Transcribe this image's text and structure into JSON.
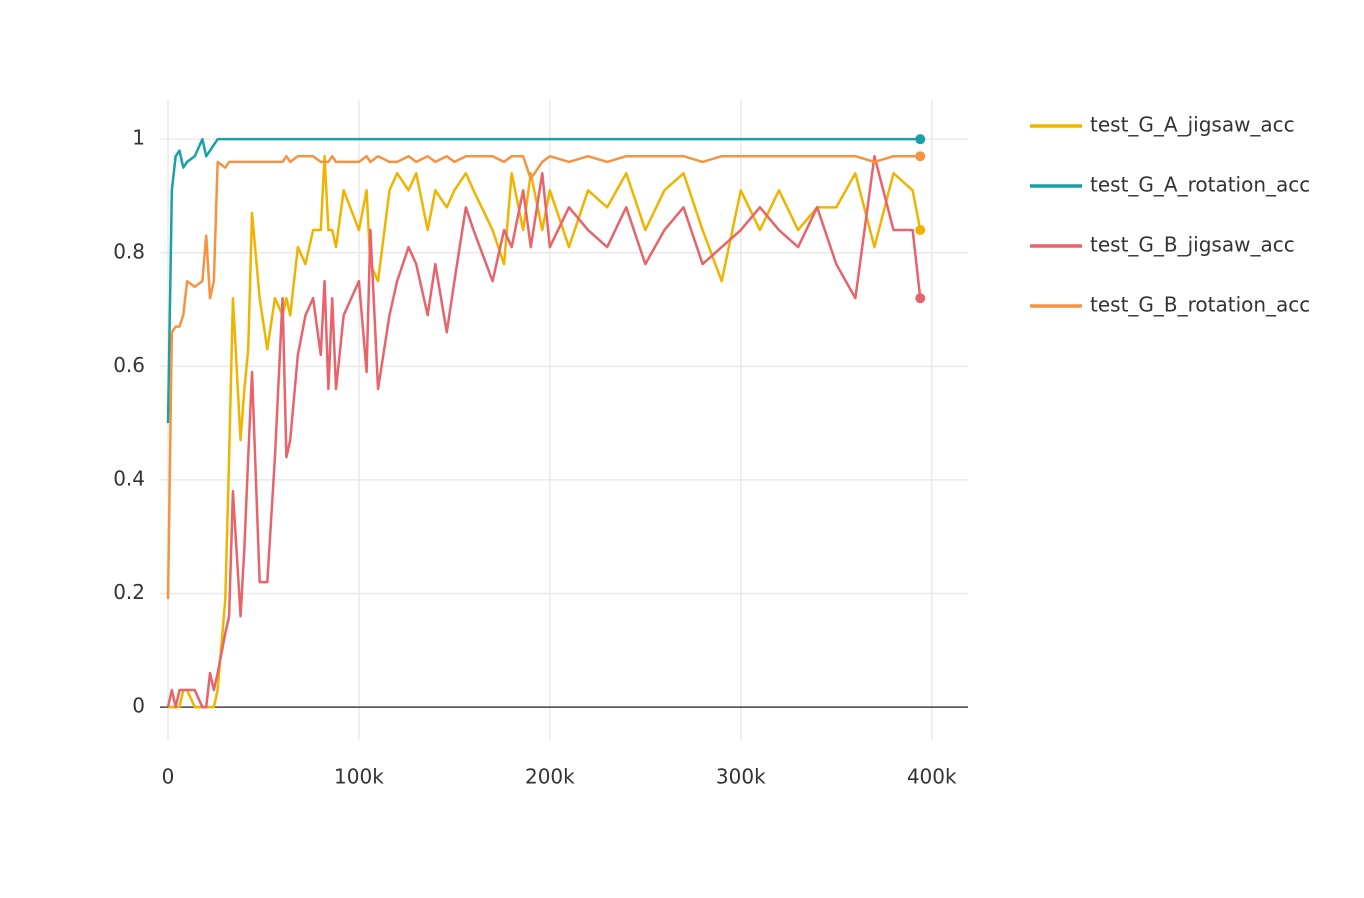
{
  "chart_data": {
    "type": "line",
    "x": [
      0,
      2000,
      4000,
      6000,
      8000,
      10000,
      14000,
      18000,
      20000,
      22000,
      24000,
      26000,
      30000,
      32000,
      34000,
      38000,
      40000,
      42000,
      44000,
      48000,
      52000,
      56000,
      60000,
      62000,
      64000,
      68000,
      72000,
      76000,
      80000,
      82000,
      84000,
      86000,
      88000,
      92000,
      100000,
      104000,
      106000,
      110000,
      116000,
      120000,
      126000,
      130000,
      136000,
      140000,
      146000,
      150000,
      156000,
      160000,
      170000,
      176000,
      180000,
      186000,
      190000,
      196000,
      200000,
      210000,
      220000,
      230000,
      240000,
      250000,
      260000,
      270000,
      280000,
      290000,
      300000,
      310000,
      320000,
      330000,
      340000,
      350000,
      360000,
      370000,
      380000,
      390000,
      394000
    ],
    "series": [
      {
        "name": "test_G_A_jigsaw_acc",
        "color": "#f0b400",
        "values": [
          0,
          0,
          0,
          0,
          0.03,
          0.03,
          0,
          0,
          0,
          0,
          0,
          0.03,
          0.19,
          0.44,
          0.72,
          0.47,
          0.56,
          0.63,
          0.87,
          0.72,
          0.63,
          0.72,
          0.69,
          0.72,
          0.69,
          0.81,
          0.78,
          0.84,
          0.84,
          0.97,
          0.84,
          0.84,
          0.81,
          0.91,
          0.84,
          0.91,
          0.78,
          0.75,
          0.91,
          0.94,
          0.91,
          0.94,
          0.84,
          0.91,
          0.88,
          0.91,
          0.94,
          0.91,
          0.84,
          0.78,
          0.94,
          0.84,
          0.94,
          0.84,
          0.91,
          0.81,
          0.91,
          0.88,
          0.94,
          0.84,
          0.91,
          0.94,
          0.84,
          0.75,
          0.91,
          0.84,
          0.91,
          0.84,
          0.88,
          0.88,
          0.94,
          0.81,
          0.94,
          0.91,
          0.84
        ]
      },
      {
        "name": "test_G_A_rotation_acc",
        "color": "#1aa0a8",
        "values": [
          0.5,
          0.91,
          0.97,
          0.98,
          0.95,
          0.96,
          0.97,
          1,
          0.97,
          0.98,
          0.99,
          1,
          1,
          1,
          1,
          1,
          1,
          1,
          1,
          1,
          1,
          1,
          1,
          1,
          1,
          1,
          1,
          1,
          1,
          1,
          1,
          1,
          1,
          1,
          1,
          1,
          1,
          1,
          1,
          1,
          1,
          1,
          1,
          1,
          1,
          1,
          1,
          1,
          1,
          1,
          1,
          1,
          1,
          1,
          1,
          1,
          1,
          1,
          1,
          1,
          1,
          1,
          1,
          1,
          1,
          1,
          1,
          1,
          1,
          1,
          1,
          1,
          1,
          1,
          1
        ]
      },
      {
        "name": "test_G_B_jigsaw_acc",
        "color": "#e8636a",
        "values": [
          0,
          0.03,
          0,
          0.03,
          0.03,
          0.03,
          0.03,
          0,
          0,
          0.06,
          0.03,
          0.06,
          0.13,
          0.16,
          0.38,
          0.16,
          0.28,
          0.44,
          0.59,
          0.22,
          0.22,
          0.44,
          0.72,
          0.44,
          0.47,
          0.62,
          0.69,
          0.72,
          0.62,
          0.75,
          0.56,
          0.72,
          0.56,
          0.69,
          0.75,
          0.59,
          0.84,
          0.56,
          0.69,
          0.75,
          0.81,
          0.78,
          0.69,
          0.78,
          0.66,
          0.75,
          0.88,
          0.84,
          0.75,
          0.84,
          0.81,
          0.91,
          0.81,
          0.94,
          0.81,
          0.88,
          0.84,
          0.81,
          0.88,
          0.78,
          0.84,
          0.88,
          0.78,
          0.81,
          0.84,
          0.88,
          0.84,
          0.81,
          0.88,
          0.78,
          0.72,
          0.97,
          0.84,
          0.84,
          0.72
        ]
      },
      {
        "name": "test_G_B_rotation_acc",
        "color": "#f59340",
        "values": [
          0.19,
          0.66,
          0.67,
          0.67,
          0.69,
          0.75,
          0.74,
          0.75,
          0.83,
          0.72,
          0.75,
          0.96,
          0.95,
          0.96,
          0.96,
          0.96,
          0.96,
          0.96,
          0.96,
          0.96,
          0.96,
          0.96,
          0.96,
          0.97,
          0.96,
          0.97,
          0.97,
          0.97,
          0.96,
          0.96,
          0.96,
          0.97,
          0.96,
          0.96,
          0.96,
          0.97,
          0.96,
          0.97,
          0.96,
          0.96,
          0.97,
          0.96,
          0.97,
          0.96,
          0.97,
          0.96,
          0.97,
          0.97,
          0.97,
          0.96,
          0.97,
          0.97,
          0.93,
          0.96,
          0.97,
          0.96,
          0.97,
          0.96,
          0.97,
          0.97,
          0.97,
          0.97,
          0.96,
          0.97,
          0.97,
          0.97,
          0.97,
          0.97,
          0.97,
          0.97,
          0.97,
          0.96,
          0.97,
          0.97,
          0.97
        ]
      }
    ],
    "xlim": [
      -4200,
      419000
    ],
    "xticks": [
      0,
      {
        "value": 100000,
        "label": "100k"
      },
      {
        "value": 200000,
        "label": "200k"
      },
      {
        "value": 300000,
        "label": "300k"
      },
      {
        "value": 400000,
        "label": "400k"
      }
    ],
    "ylim": [
      -0.058,
      1.069
    ],
    "yticks": [
      0,
      0.2,
      0.4,
      0.6,
      0.8,
      1
    ],
    "grid": true,
    "legend": "right"
  }
}
